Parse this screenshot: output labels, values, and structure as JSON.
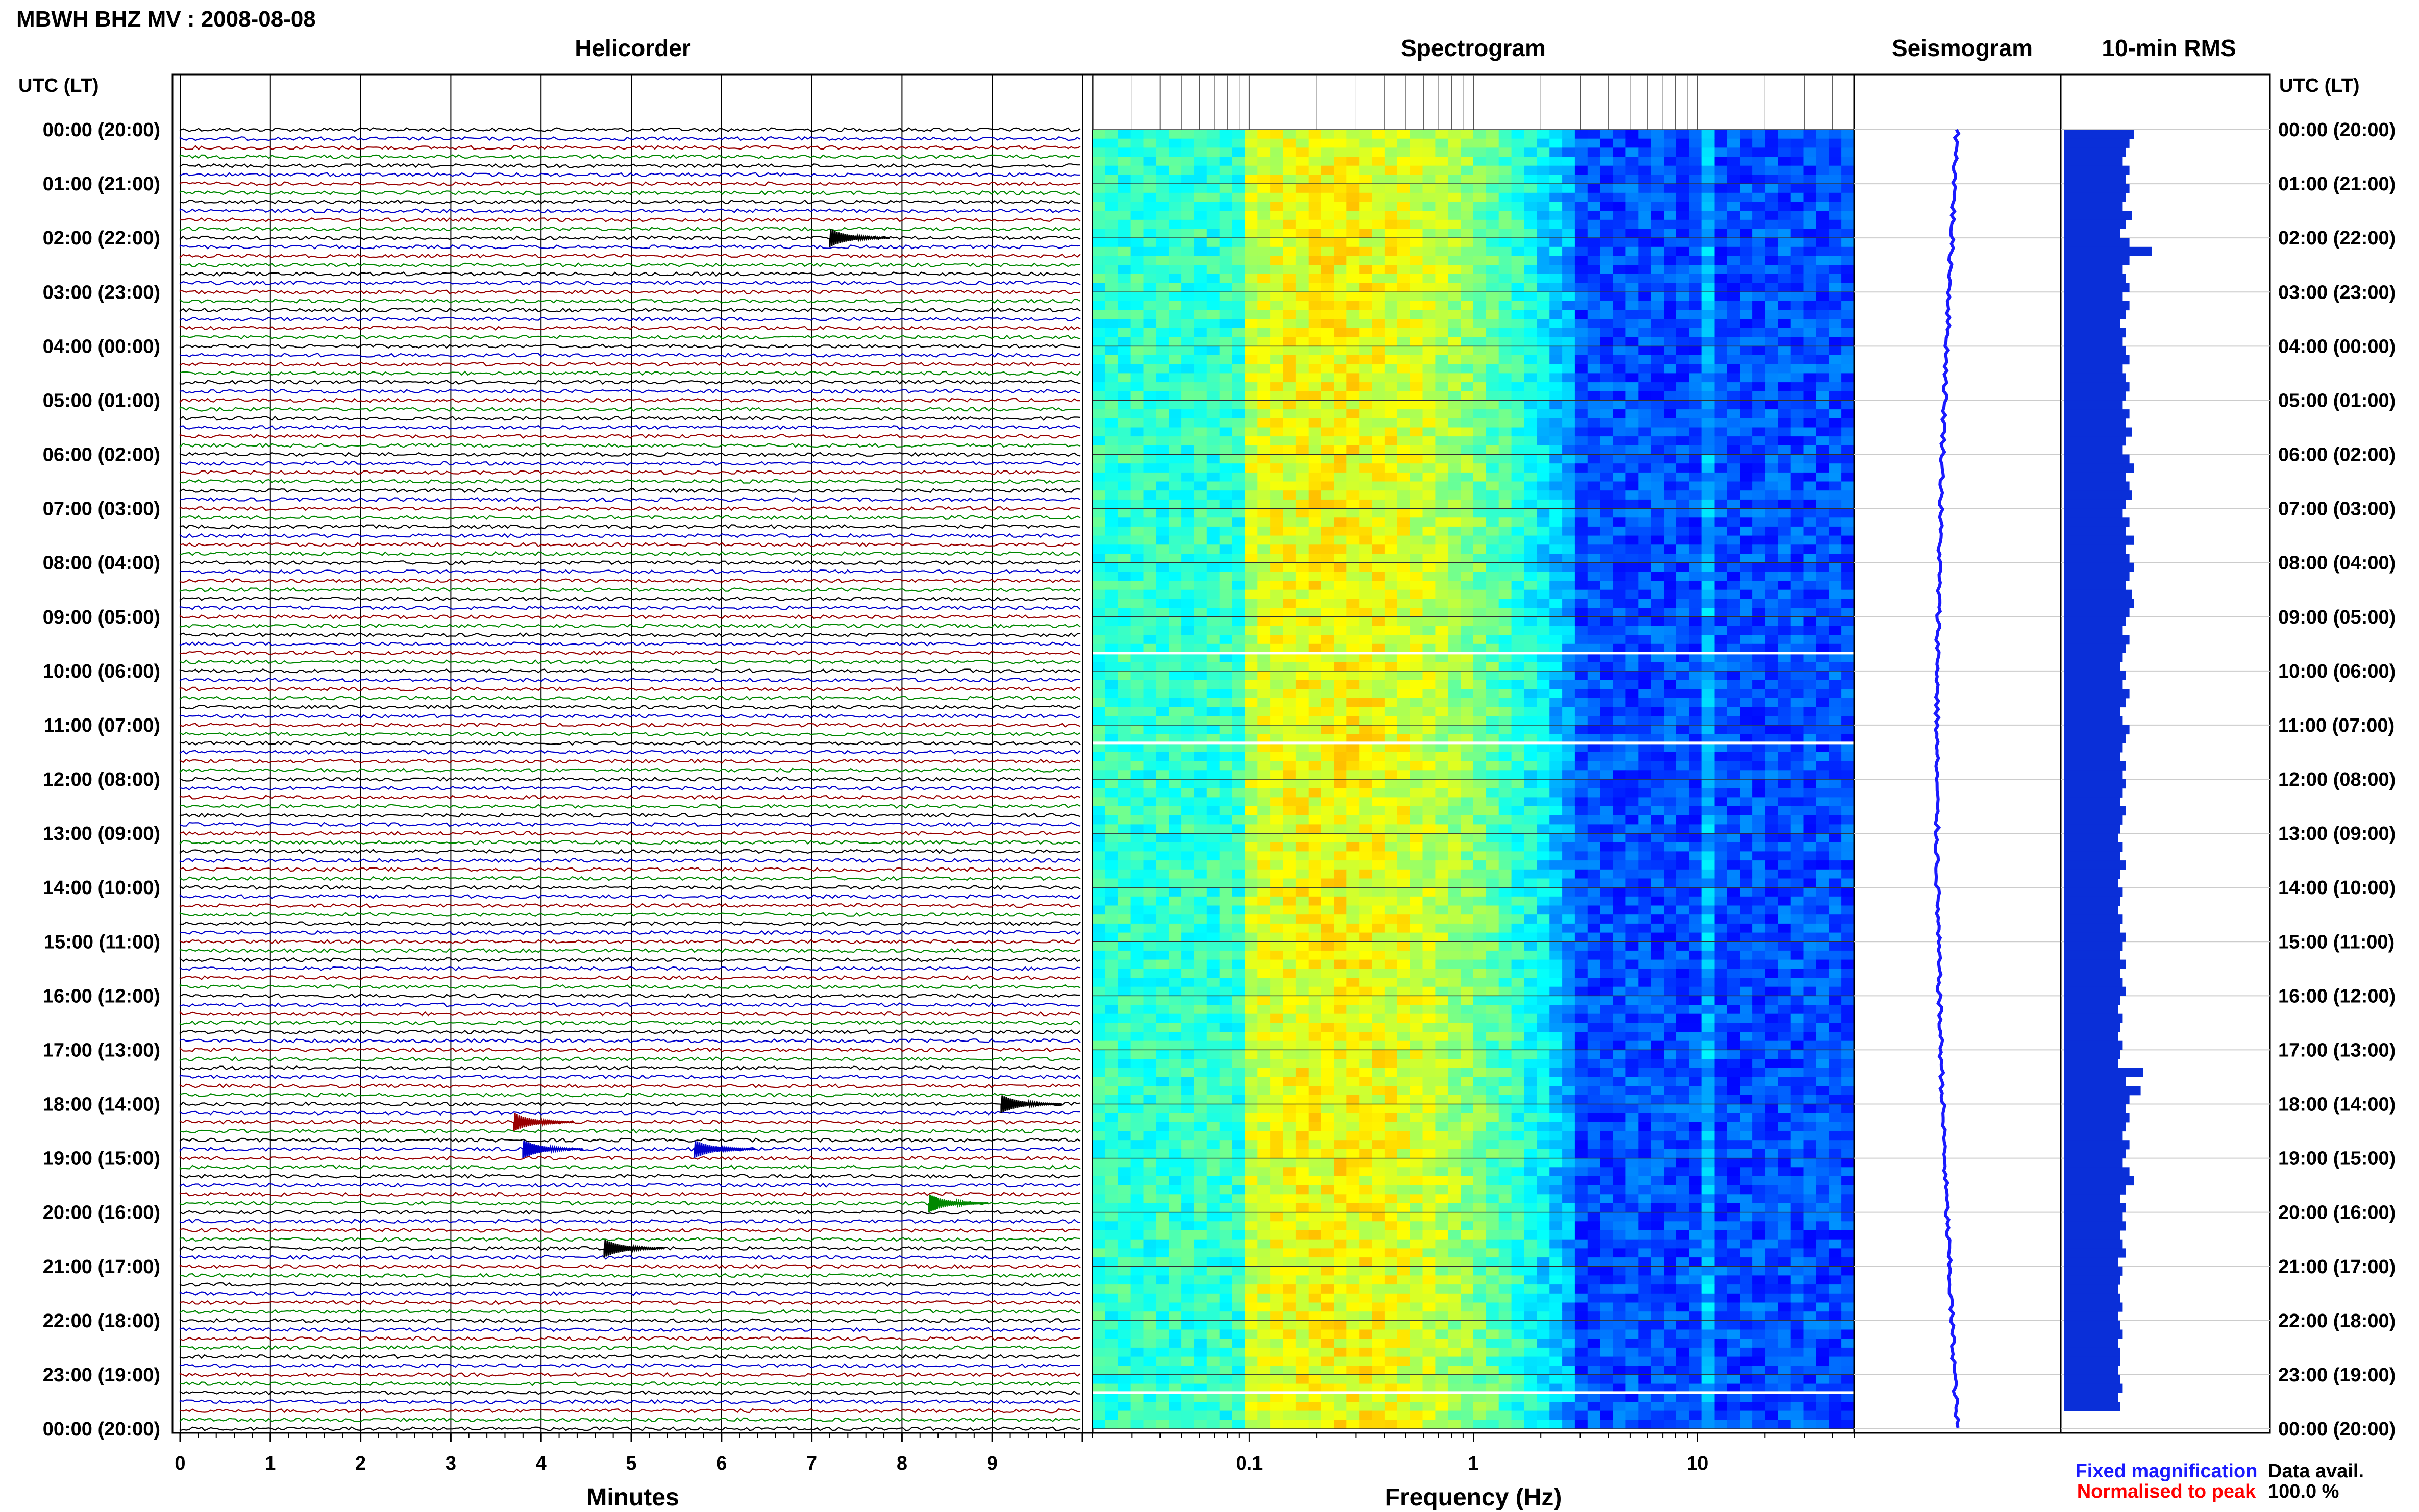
{
  "header": {
    "title": "MBWH BHZ MV : 2008-08-08",
    "utc_label_left": "UTC (LT)",
    "utc_label_right": "UTC (LT)"
  },
  "panels": {
    "helicorder": "Helicorder",
    "spectrogram": "Spectrogram",
    "seismogram": "Seismogram",
    "rms": "10-min RMS"
  },
  "axes": {
    "minutes_label": "Minutes",
    "minutes_ticks": [
      "0",
      "1",
      "2",
      "3",
      "4",
      "5",
      "6",
      "7",
      "8",
      "9"
    ],
    "frequency_label": "Frequency (Hz)",
    "frequency_ticks": [
      "0.1",
      "1",
      "10"
    ]
  },
  "legend": {
    "fixed": "Fixed magnification",
    "normalised": "Normalised to peak",
    "fixed_color": "#1a1aff",
    "normalised_color": "#ff0000"
  },
  "data_availability": {
    "label": "Data avail.",
    "value": "100.0 %"
  },
  "trace_colors": [
    "#000000",
    "#0000cc",
    "#990000",
    "#008800"
  ],
  "chart_data": [
    {
      "type": "line",
      "name": "helicorder",
      "x_range_minutes": [
        0,
        10
      ],
      "rows_per_hour": 6,
      "time_labels": [
        "00:00 (20:00)",
        "01:00 (21:00)",
        "02:00 (22:00)",
        "03:00 (23:00)",
        "04:00 (00:00)",
        "05:00 (01:00)",
        "06:00 (02:00)",
        "07:00 (03:00)",
        "08:00 (04:00)",
        "09:00 (05:00)",
        "10:00 (06:00)",
        "11:00 (07:00)",
        "12:00 (08:00)",
        "13:00 (09:00)",
        "14:00 (10:00)",
        "15:00 (11:00)",
        "16:00 (12:00)",
        "17:00 (13:00)",
        "18:00 (14:00)",
        "19:00 (15:00)",
        "20:00 (16:00)",
        "21:00 (17:00)",
        "22:00 (18:00)",
        "23:00 (19:00)",
        "00:00 (20:00)"
      ],
      "events": [
        {
          "hour": 2,
          "row": 0,
          "minute": 7.2
        },
        {
          "hour": 18,
          "row": 0,
          "minute": 9.1
        },
        {
          "hour": 18,
          "row": 2,
          "minute": 3.7
        },
        {
          "hour": 18,
          "row": 5,
          "minute": 3.8
        },
        {
          "hour": 18,
          "row": 5,
          "minute": 5.7
        },
        {
          "hour": 19,
          "row": 5,
          "minute": 8.3
        },
        {
          "hour": 20,
          "row": 4,
          "minute": 4.7
        }
      ]
    },
    {
      "type": "heatmap",
      "name": "spectrogram",
      "xscale": "log",
      "x_range_hz": [
        0.02,
        50
      ],
      "notable_features": [
        "peak energy near 0.25 Hz",
        "persistent line near 11 Hz",
        "data gaps near 09:40, 11:20, 23:20"
      ]
    },
    {
      "type": "line",
      "name": "seismogram",
      "description_values": "long-period drift, bulges at 02:00, 18:00-19:00"
    },
    {
      "type": "bar",
      "name": "rms",
      "bins_per_hour": 6,
      "relative_values": [
        0.62,
        0.58,
        0.55,
        0.52,
        0.58,
        0.55,
        0.58,
        0.55,
        0.52,
        0.6,
        0.55,
        0.5,
        0.58,
        0.78,
        0.58,
        0.52,
        0.55,
        0.58,
        0.52,
        0.58,
        0.55,
        0.5,
        0.55,
        0.52,
        0.55,
        0.58,
        0.52,
        0.55,
        0.58,
        0.55,
        0.52,
        0.58,
        0.55,
        0.6,
        0.55,
        0.52,
        0.58,
        0.62,
        0.55,
        0.58,
        0.6,
        0.55,
        0.52,
        0.58,
        0.55,
        0.62,
        0.55,
        0.58,
        0.62,
        0.58,
        0.55,
        0.6,
        0.62,
        0.58,
        0.55,
        0.52,
        0.58,
        0.55,
        0.52,
        0.5,
        0.55,
        0.52,
        0.58,
        0.55,
        0.5,
        0.52,
        0.58,
        0.55,
        0.52,
        0.5,
        0.55,
        0.52,
        0.55,
        0.52,
        0.5,
        0.55,
        0.52,
        0.5,
        0.48,
        0.52,
        0.5,
        0.55,
        0.5,
        0.48,
        0.52,
        0.5,
        0.48,
        0.52,
        0.5,
        0.55,
        0.52,
        0.5,
        0.55,
        0.5,
        0.52,
        0.55,
        0.5,
        0.48,
        0.52,
        0.5,
        0.48,
        0.52,
        0.5,
        0.48,
        0.7,
        0.55,
        0.68,
        0.58,
        0.55,
        0.58,
        0.55,
        0.52,
        0.58,
        0.55,
        0.52,
        0.58,
        0.62,
        0.55,
        0.5,
        0.55,
        0.52,
        0.55,
        0.5,
        0.52,
        0.55,
        0.48,
        0.52,
        0.5,
        0.48,
        0.5,
        0.52,
        0.48,
        0.5,
        0.52,
        0.48,
        0.5,
        0.5,
        0.48,
        0.5,
        0.52,
        0.48,
        0.5
      ]
    }
  ]
}
